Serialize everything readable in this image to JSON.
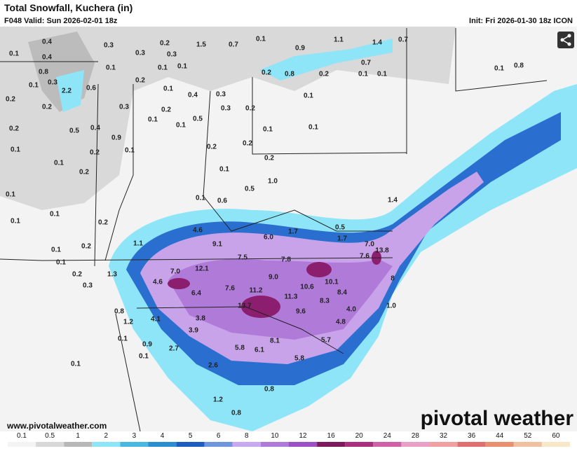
{
  "header": {
    "title": "Total Snowfall, Kuchera (in)",
    "valid": "F048 Valid: Sun 2026-02-01 18z",
    "init": "Init: Fri 2026-01-30 18z ICON"
  },
  "footer": {
    "site": "www.pivotalweather.com",
    "logo": "pivotal weather"
  },
  "colorbar": {
    "labels": [
      "0.1",
      "0.5",
      "1",
      "2",
      "3",
      "4",
      "5",
      "6",
      "8",
      "10",
      "12",
      "16",
      "20",
      "24",
      "28",
      "32",
      "36",
      "44",
      "52",
      "60"
    ]
  },
  "map": {
    "labels": [
      "0.4",
      "0.1",
      "0.4",
      "0.3",
      "0.3",
      "0.2",
      "0.3",
      "1.5",
      "0.7",
      "0.1",
      "0.9",
      "1.1",
      "1.4",
      "0.7",
      "0.8",
      "0.1",
      "0.2",
      "0.1",
      "0.1",
      "0.7",
      "0.2",
      "0.8",
      "0.2",
      "0.1",
      "0.1",
      "0.1",
      "0.8",
      "0.1",
      "0.3",
      "2.2",
      "0.6",
      "0.1",
      "0.4",
      "0.3",
      "0.2",
      "0.2",
      "0.3",
      "0.2",
      "0.3",
      "0.2",
      "0.1",
      "0.1",
      "0.1",
      "0.5",
      "0.2",
      "0.5",
      "0.4",
      "0.9",
      "0.1",
      "0.1",
      "0.1",
      "0.2",
      "0.1",
      "0.2",
      "0.2",
      "0.2",
      "0.1",
      "0.2",
      "0.1",
      "1.0",
      "0.5",
      "0.1",
      "0.1",
      "0.6",
      "1.4",
      "0.1",
      "0.2",
      "0.1",
      "4.6",
      "1.7",
      "0.5",
      "1.1",
      "9.1",
      "6.0",
      "1.7",
      "0.1",
      "0.2",
      "7.5",
      "7.8",
      "7.0",
      "7.6",
      "13.8",
      "0.1",
      "12.1",
      "7.0",
      "0.2",
      "1.3",
      "9.0",
      "10.1",
      "4.6",
      "0.3",
      "7.6",
      "11.2",
      "10.6",
      "8.4",
      "6.4",
      "8",
      "11.3",
      "8.3",
      "13.7",
      "9.6",
      "4.0",
      "1.0",
      "0.8",
      "1.2",
      "4.1",
      "3.8",
      "4.8",
      "3.9",
      "5.7",
      "8.1",
      "0.1",
      "0.9",
      "2.7",
      "5.8",
      "6.1",
      "0.1",
      "5.8",
      "0.1",
      "2.6",
      "0.8",
      "1.2",
      "0.8"
    ]
  }
}
